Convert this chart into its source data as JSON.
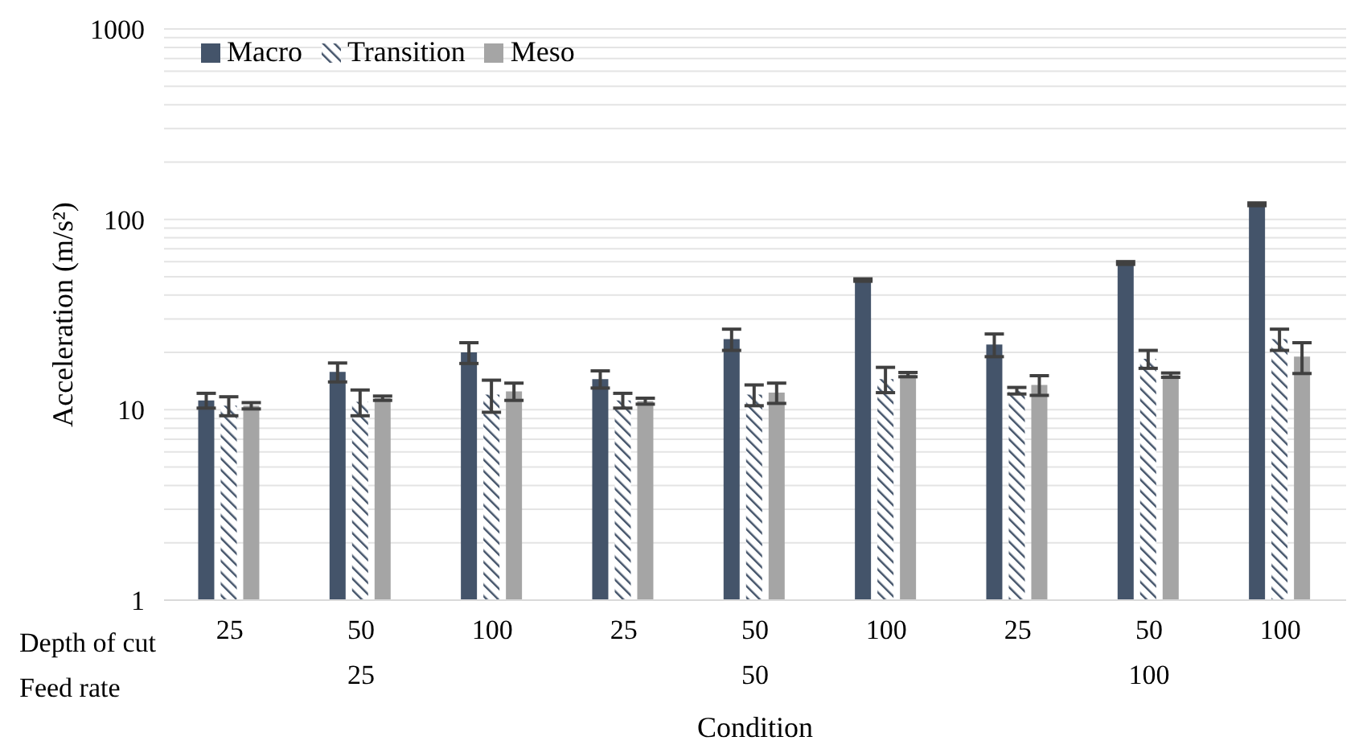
{
  "chart_data": {
    "type": "bar",
    "ylabel": "Acceleration (m/s²)",
    "xlabel": "Condition",
    "categories": [
      "25",
      "50",
      "100",
      "25",
      "50",
      "100",
      "25",
      "50",
      "100"
    ],
    "annotations": [
      "Depth of cut",
      "Feed rate",
      "25",
      "50",
      "100"
    ],
    "series": [
      {
        "name": "Macro",
        "color": "#44546a",
        "values": [
          11.2,
          15.8,
          20,
          14.5,
          23.5,
          48,
          22,
          59,
          120
        ],
        "errors": [
          1,
          1.8,
          2.5,
          1.5,
          3,
          0.7,
          3,
          1,
          2
        ]
      },
      {
        "name": "Transition",
        "color": "#44546a",
        "values": [
          10.5,
          11,
          12,
          11.2,
          12,
          14.5,
          12.6,
          18.5,
          23.5
        ],
        "errors": [
          1.2,
          1.7,
          2.3,
          1,
          1.5,
          2.2,
          0.5,
          2,
          3
        ]
      },
      {
        "name": "Meso",
        "color": "#a5a5a5",
        "values": [
          10.5,
          11.5,
          12.5,
          11.1,
          12.3,
          15.3,
          13.5,
          15.2,
          19
        ],
        "errors": [
          0.4,
          0.3,
          1.3,
          0.4,
          1.5,
          0.4,
          1.6,
          0.4,
          3.5
        ]
      }
    ],
    "log": true,
    "ylim": [
      1,
      1000
    ],
    "yticks": [
      1,
      {
        "value": 2,
        "label": null
      },
      {
        "value": 3,
        "label": null
      },
      {
        "value": 4,
        "label": null
      },
      {
        "value": 5,
        "label": null
      },
      {
        "value": 6,
        "label": null
      },
      {
        "value": 7,
        "label": null
      },
      {
        "value": 8,
        "label": null
      },
      {
        "value": 9,
        "label": null
      },
      10,
      {
        "value": 20,
        "label": null
      },
      {
        "value": 30,
        "label": null
      },
      {
        "value": 40,
        "label": null
      },
      {
        "value": 50,
        "label": null
      },
      {
        "value": 60,
        "label": null
      },
      {
        "value": 70,
        "label": null
      },
      {
        "value": 80,
        "label": null
      },
      {
        "value": 90,
        "label": null
      },
      100,
      {
        "value": 200,
        "label": null
      },
      {
        "value": 300,
        "label": null
      },
      {
        "value": 400,
        "label": null
      },
      {
        "value": 500,
        "label": null
      },
      {
        "value": 600,
        "label": null
      },
      {
        "value": 700,
        "label": null
      },
      {
        "value": 800,
        "label": null
      },
      {
        "value": 900,
        "label": null
      },
      1000
    ],
    "grid": "y",
    "legend": "top left"
  }
}
